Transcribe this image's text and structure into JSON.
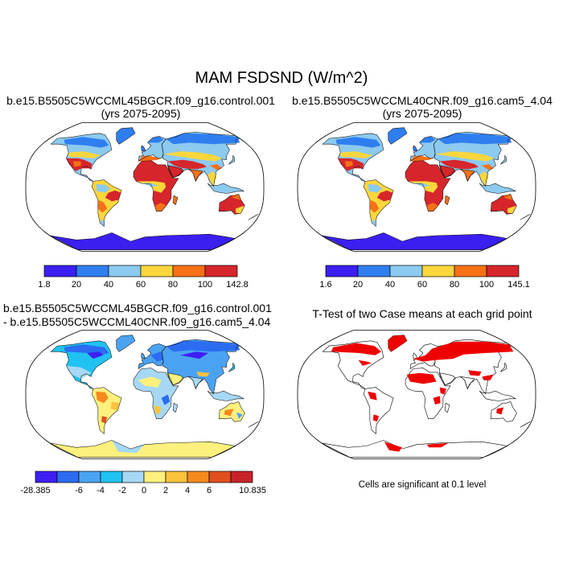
{
  "title": "MAM FSDSND (W/m^2)",
  "panels": {
    "case1": {
      "title_line1": "b.e15.B5505C5WCCML45BGCR.f09_g16.control.001",
      "title_line2": "(yrs 2075-2095)"
    },
    "case2": {
      "title_line1": "b.e15.B5505C5WCCML40CNR.f09_g16.cam5_4.04",
      "title_line2": "(yrs 2075-2095)"
    },
    "diff": {
      "title_line1": "b.e15.B5505C5WCCML45BGCR.f09_g16.control.001",
      "title_line2": "- b.e15.B5505C5WCCML40CNR.f09_g16.cam5_4.04"
    },
    "ttest": {
      "title": "T-Test of two Case means at each grid point",
      "note": "Cells are significant at 0.1 level"
    }
  },
  "chart_data": [
    {
      "type": "heatmap",
      "name": "case1",
      "projection": "Robinson",
      "colorbar": {
        "labels": [
          "1.8",
          "20",
          "40",
          "60",
          "80",
          "100",
          "142.8"
        ],
        "colors": [
          "#3a1ff0",
          "#2f7ef0",
          "#8ccaf0",
          "#fbd63c",
          "#f77015",
          "#d6262b"
        ]
      }
    },
    {
      "type": "heatmap",
      "name": "case2",
      "projection": "Robinson",
      "colorbar": {
        "labels": [
          "1.6",
          "20",
          "40",
          "60",
          "80",
          "100",
          "145.1"
        ],
        "colors": [
          "#3a1ff0",
          "#2f7ef0",
          "#8ccaf0",
          "#fbd63c",
          "#f77015",
          "#d6262b"
        ]
      }
    },
    {
      "type": "heatmap",
      "name": "difference",
      "projection": "Robinson",
      "colorbar": {
        "labels": [
          "-28.385",
          "-6",
          "-4",
          "-2",
          "0",
          "2",
          "4",
          "6",
          "10.835"
        ],
        "colors": [
          "#3d1ff2",
          "#2b6cf0",
          "#4aa3f2",
          "#20c2f2",
          "#a6d8f5",
          "#fdf07d",
          "#fbc23c",
          "#f7891e",
          "#e04f1e",
          "#c8232a"
        ]
      }
    },
    {
      "type": "heatmap",
      "name": "significance",
      "projection": "Robinson",
      "colors": {
        "significant": "#ee0000"
      }
    }
  ]
}
